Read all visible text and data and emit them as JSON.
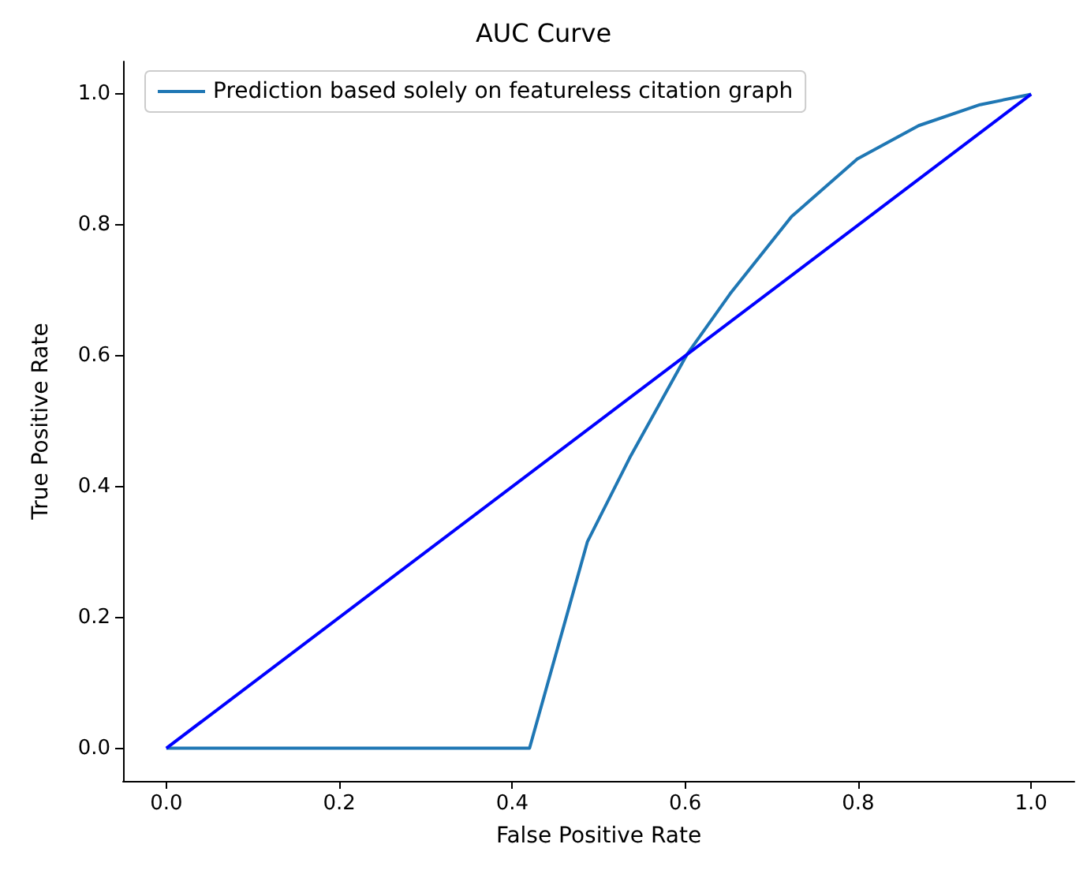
{
  "chart_data": {
    "type": "line",
    "title": "AUC Curve",
    "xlabel": "False Positive Rate",
    "ylabel": "True Positive Rate",
    "xlim": [
      -0.05,
      1.05
    ],
    "xticks": [
      {
        "value": 0,
        "label": "0.0"
      },
      {
        "value": 0.2,
        "label": "0.2"
      },
      {
        "value": 0.4,
        "label": "0.4"
      },
      {
        "value": 0.6,
        "label": "0.6"
      },
      {
        "value": 0.8,
        "label": "0.8"
      },
      {
        "value": 1,
        "label": "1.0"
      }
    ],
    "ylim": [
      -0.05,
      1.05
    ],
    "yticks": [
      {
        "value": 0,
        "label": "0.0"
      },
      {
        "value": 0.2,
        "label": "0.2"
      },
      {
        "value": 0.4,
        "label": "0.4"
      },
      {
        "value": 0.6,
        "label": "0.6"
      },
      {
        "value": 0.8,
        "label": "0.8"
      },
      {
        "value": 1,
        "label": "1.0"
      }
    ],
    "series": [
      {
        "name": "Prediction based solely on featureless citation graph",
        "color": "#1f77b4",
        "x": [
          0,
          0.42,
          0.487,
          0.537,
          0.602,
          0.652,
          0.723,
          0.799,
          0.87,
          0.941,
          1
        ],
        "values": [
          0,
          0,
          0.316,
          0.447,
          0.602,
          0.695,
          0.813,
          0.901,
          0.952,
          0.984,
          1
        ]
      },
      {
        "color": "#0000ff",
        "x": [
          0,
          1
        ],
        "values": [
          0,
          1
        ]
      }
    ],
    "legend": "top left",
    "grid": false,
    "marker": "none",
    "line_style": "solid"
  }
}
